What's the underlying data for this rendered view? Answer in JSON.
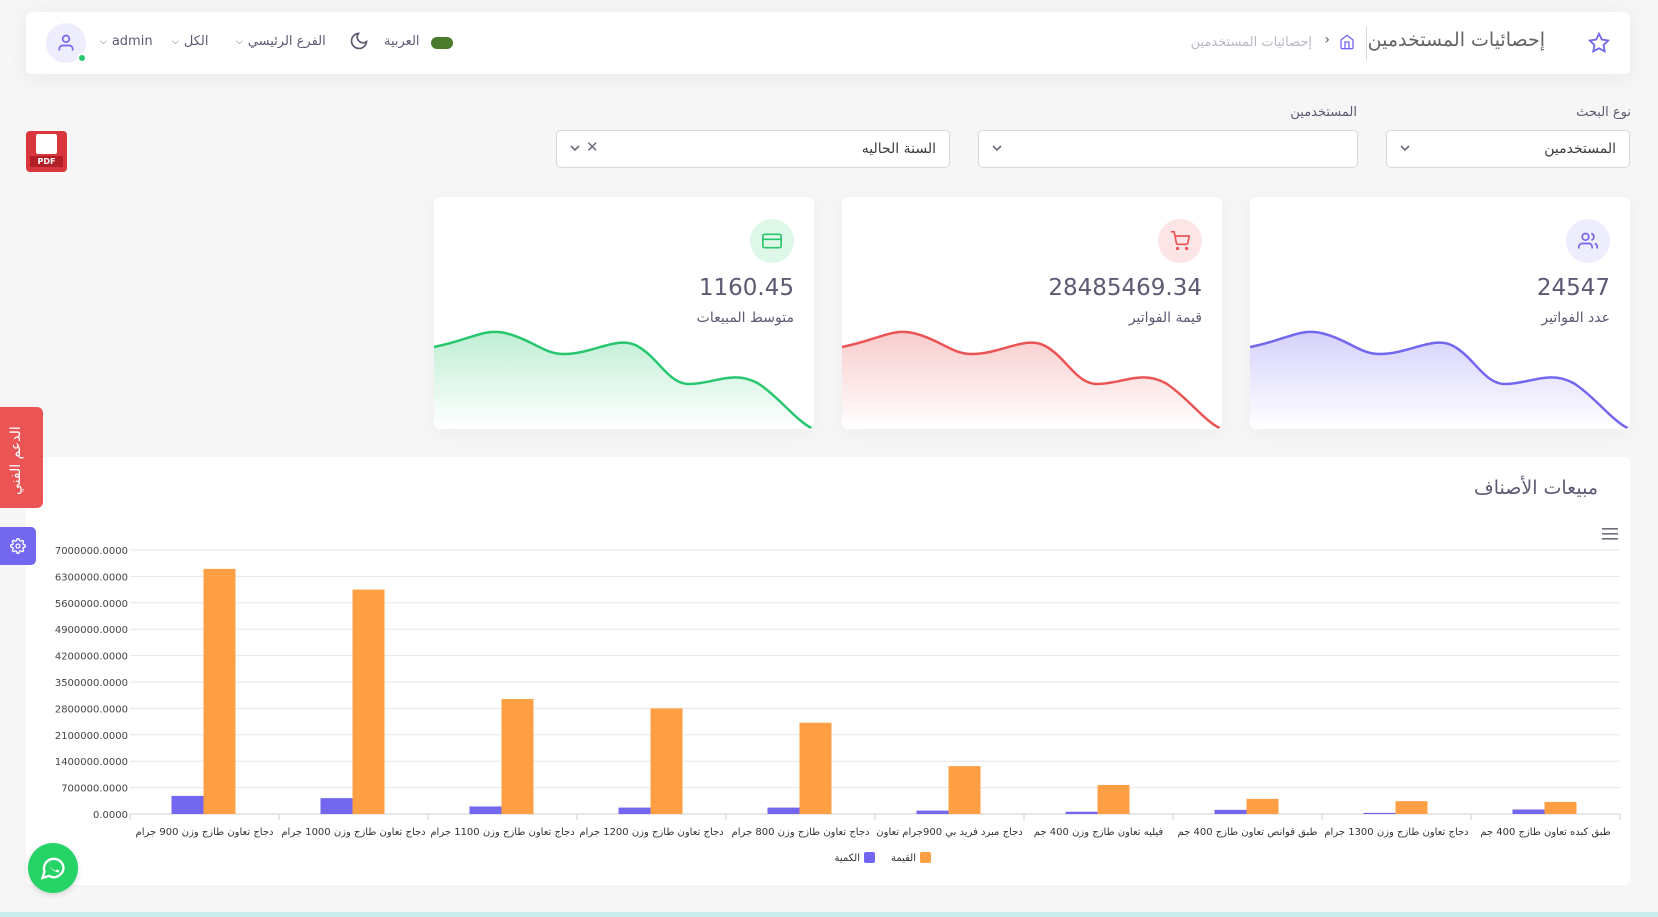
{
  "navbar": {
    "page_title": "إحصائيات المستخدمين",
    "breadcrumb_current": "إحصائيات المستخدمين",
    "user_name": "admin",
    "scope": "الكل",
    "branch": "الفرع الرئيسي",
    "language": "العربية",
    "icons": [
      "star-icon",
      "home-icon",
      "moon-icon",
      "user-icon",
      "flag-icon"
    ]
  },
  "filters": {
    "search_type_label": "نوع البحث",
    "search_type_value": "المستخدمين",
    "users_label": "المستخدمين",
    "users_value": "",
    "period_value": "السنة الحاليه"
  },
  "stats": [
    {
      "value": "24547",
      "label": "عدد الفواتير",
      "icon": "users-icon",
      "color": "#7367f0"
    },
    {
      "value": "28485469.34",
      "label": "قيمة الفواتير",
      "icon": "cart-icon",
      "color": "#ea5455"
    },
    {
      "value": "1160.45",
      "label": "متوسط المبيعات",
      "icon": "credit-card-icon",
      "color": "#28c76f"
    }
  ],
  "side": {
    "support_label": "الدعم الفني"
  },
  "chart_data": {
    "type": "bar",
    "title": "مبيعات الأصناف",
    "categories": [
      "دجاج تعاون طازج وزن 900 جرام",
      "دجاج تعاون طازج وزن 1000 جرام",
      "دجاج تعاون طازج وزن 1100 جرام",
      "دجاج تعاون طازج وزن 1200 جرام",
      "دجاج تعاون طازج وزن 800 جرام",
      "دجاج مبرد فريد بي 900جرام تعاون",
      "فيليه تعاون طازج وزن 400 جم",
      "طبق قوانص تعاون طازج 400 جم",
      "دجاج تعاون طازج وزن 1300 جرام",
      "طبق كبده تعاون طازج 400 جم"
    ],
    "series": [
      {
        "name": "الكمية",
        "color": "#7367f0",
        "values": [
          480000,
          420000,
          200000,
          170000,
          170000,
          90000,
          60000,
          110000,
          30000,
          120000
        ]
      },
      {
        "name": "القيمة",
        "color": "#ff9f43",
        "values": [
          6500000,
          5950000,
          3050000,
          2800000,
          2420000,
          1270000,
          770000,
          400000,
          340000,
          320000
        ]
      }
    ],
    "y_ticks": [
      "0.0000",
      "700000.0000",
      "1400000.0000",
      "2100000.0000",
      "2800000.0000",
      "3500000.0000",
      "4200000.0000",
      "4900000.0000",
      "5600000.0000",
      "6300000.0000",
      "7000000.0000"
    ],
    "ylim": [
      0,
      7000000
    ],
    "grid": true,
    "legend": "bottom-center"
  }
}
